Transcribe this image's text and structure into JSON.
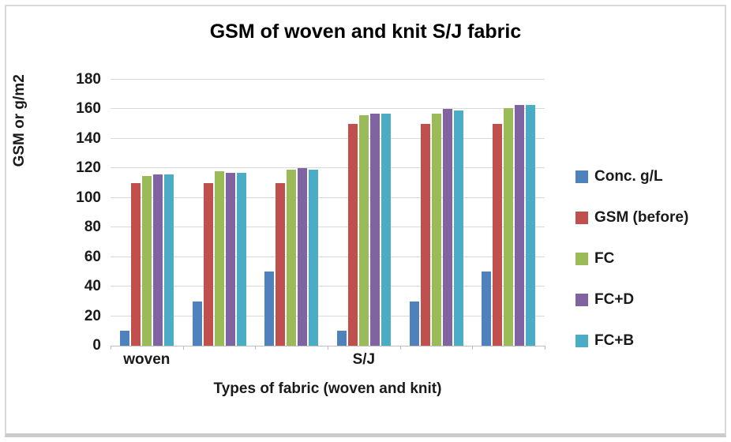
{
  "window": {
    "background_color": "#ffffff",
    "frame_border_color": "#d9d9d9"
  },
  "chart_data": {
    "type": "bar",
    "title": "GSM of woven and knit S/J fabric",
    "xlabel": "Types of fabric (woven and knit)",
    "ylabel": "GSM or g/m2",
    "ylim": [
      0,
      180
    ],
    "yticks": [
      0,
      20,
      40,
      60,
      80,
      100,
      120,
      140,
      160,
      180
    ],
    "grid": true,
    "gridline_color": "#d9d9d9",
    "axis_line_color": "#bfbfbf",
    "legend_position": "right",
    "categories": [
      "woven",
      "",
      "",
      "S/J",
      "",
      ""
    ],
    "series": [
      {
        "name": "Conc. g/L",
        "color": "#4F81BD",
        "values": [
          10,
          30,
          50,
          10,
          30,
          50
        ]
      },
      {
        "name": "GSM (before)",
        "color": "#C0504D",
        "values": [
          110,
          110,
          110,
          150,
          150,
          150
        ]
      },
      {
        "name": "FC",
        "color": "#9BBB59",
        "values": [
          115,
          118,
          119,
          156,
          157,
          161
        ]
      },
      {
        "name": "FC+D",
        "color": "#8064A2",
        "values": [
          116,
          117,
          120,
          157,
          160,
          163
        ]
      },
      {
        "name": "FC+B",
        "color": "#4BACC6",
        "values": [
          116,
          117,
          119,
          157,
          159,
          163
        ]
      }
    ]
  }
}
